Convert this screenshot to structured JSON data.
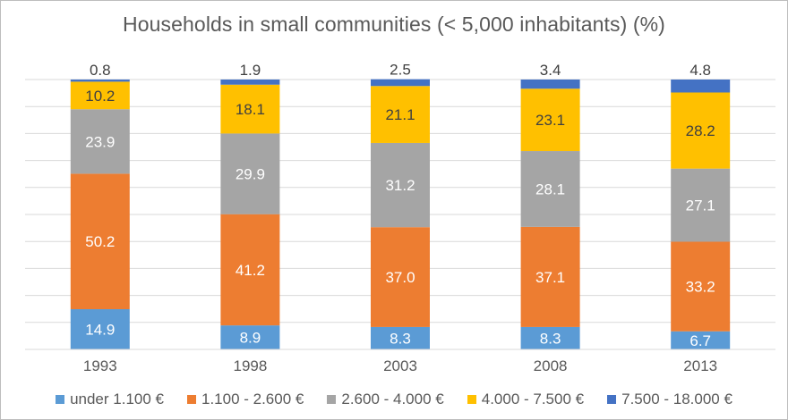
{
  "chart_data": {
    "type": "bar",
    "stacked": true,
    "title": "Households in small communities (< 5,000 inhabitants) (%)",
    "categories": [
      "1993",
      "1998",
      "2003",
      "2008",
      "2013"
    ],
    "series": [
      {
        "name": "under 1.100 €",
        "color": "#5B9BD5",
        "values": [
          14.9,
          8.9,
          8.3,
          8.3,
          6.7
        ]
      },
      {
        "name": "1.100 - 2.600 €",
        "color": "#ED7D31",
        "values": [
          50.2,
          41.2,
          37.0,
          37.1,
          33.2
        ]
      },
      {
        "name": "2.600 - 4.000 €",
        "color": "#A5A5A5",
        "values": [
          23.9,
          29.9,
          31.2,
          28.1,
          27.1
        ]
      },
      {
        "name": "4.000 - 7.500 €",
        "color": "#FFC000",
        "values": [
          10.2,
          18.1,
          21.1,
          23.1,
          28.2
        ]
      },
      {
        "name": "7.500 - 18.000 €",
        "color": "#4472C4",
        "values": [
          0.8,
          1.9,
          2.5,
          3.4,
          4.8
        ]
      }
    ],
    "value_labels": [
      [
        "14.9",
        "8.9",
        "8.3",
        "8.3",
        "6.7"
      ],
      [
        "50.2",
        "41.2",
        "37.0",
        "37.1",
        "33.2"
      ],
      [
        "23.9",
        "29.9",
        "31.2",
        "28.1",
        "27.1"
      ],
      [
        "10.2",
        "18.1",
        "21.1",
        "23.1",
        "28.2"
      ],
      [
        "0.8",
        "1.9",
        "2.5",
        "3.4",
        "4.8"
      ]
    ],
    "xlabel": "",
    "ylabel": "",
    "ylim": [
      0,
      100
    ],
    "grid": true,
    "legend_position": "bottom"
  }
}
